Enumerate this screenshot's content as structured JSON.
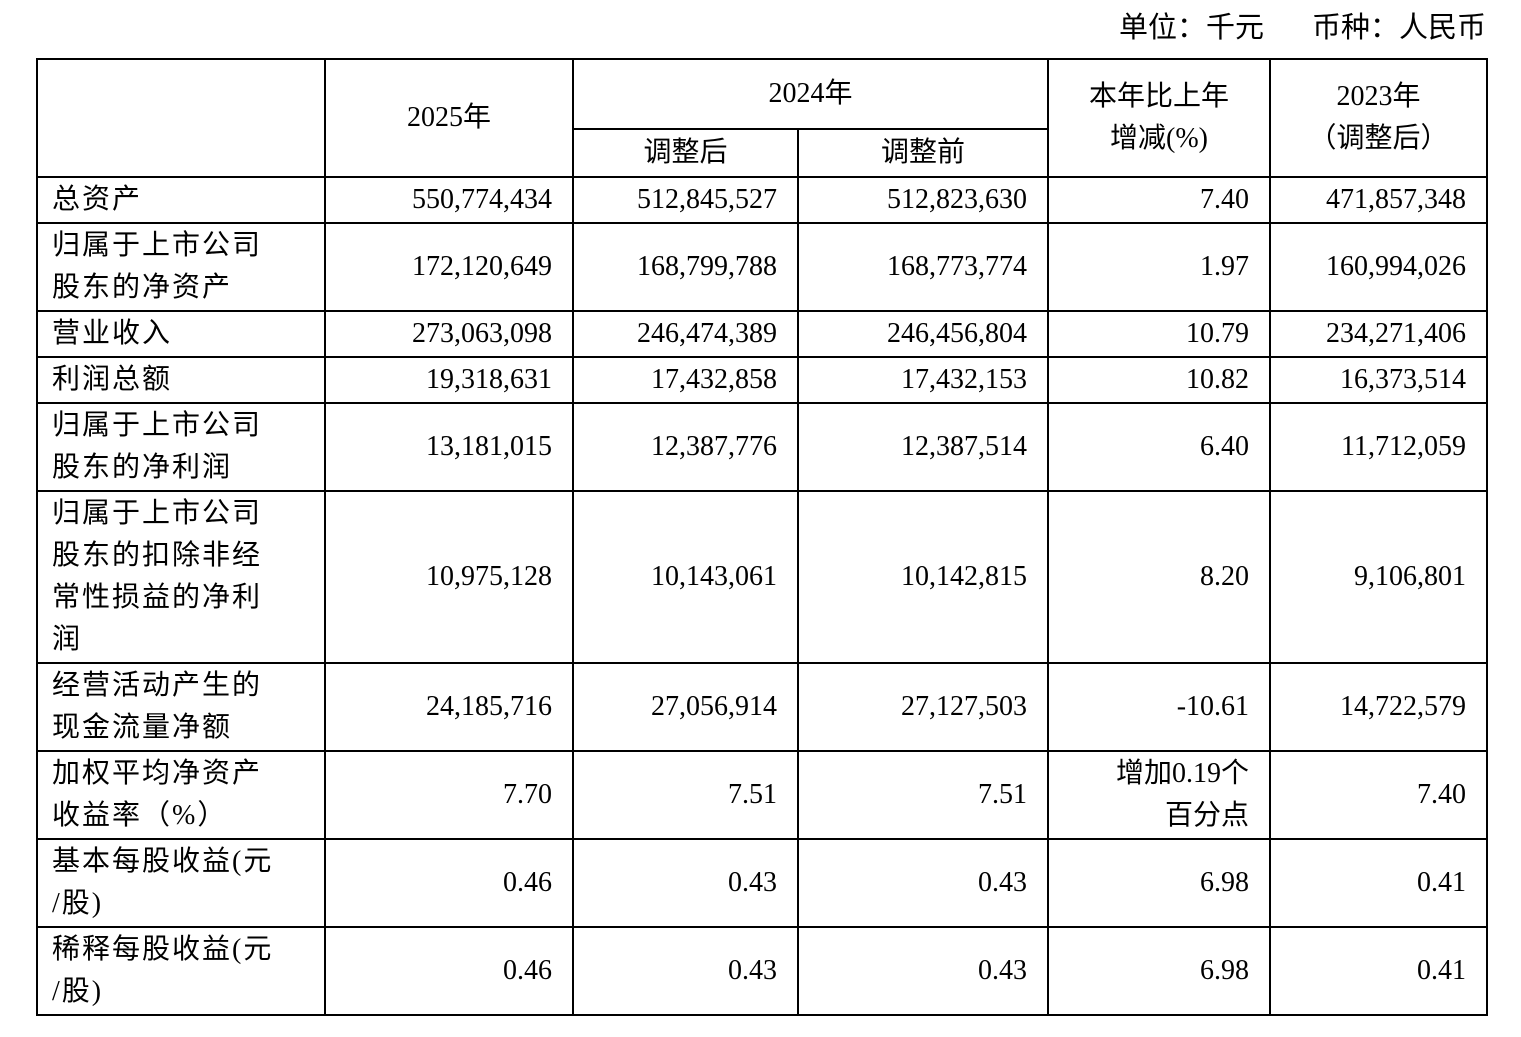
{
  "meta": {
    "unit_note": "单位：千元",
    "currency_note": "币种：人民币"
  },
  "colors": {
    "text": "#000000",
    "border": "#000000",
    "background": "#ffffff"
  },
  "table": {
    "headers": {
      "item": "",
      "col_2025": "2025年",
      "col_2024": "2024年",
      "col_2024_adjusted": "调整后",
      "col_2024_before": "调整前",
      "col_change": "本年比上年\n增减(%)",
      "col_2023": "2023年\n（调整后）"
    },
    "rows": [
      {
        "label": "总资产",
        "values": [
          "550,774,434",
          "512,845,527",
          "512,823,630",
          "7.40",
          "471,857,348"
        ]
      },
      {
        "label": "归属于上市公司\n股东的净资产",
        "values": [
          "172,120,649",
          "168,799,788",
          "168,773,774",
          "1.97",
          "160,994,026"
        ]
      },
      {
        "label": "营业收入",
        "values": [
          "273,063,098",
          "246,474,389",
          "246,456,804",
          "10.79",
          "234,271,406"
        ]
      },
      {
        "label": "利润总额",
        "values": [
          "19,318,631",
          "17,432,858",
          "17,432,153",
          "10.82",
          "16,373,514"
        ]
      },
      {
        "label": "归属于上市公司\n股东的净利润",
        "values": [
          "13,181,015",
          "12,387,776",
          "12,387,514",
          "6.40",
          "11,712,059"
        ]
      },
      {
        "label": "归属于上市公司\n股东的扣除非经\n常性损益的净利\n润",
        "values": [
          "10,975,128",
          "10,143,061",
          "10,142,815",
          "8.20",
          "9,106,801"
        ]
      },
      {
        "label": "经营活动产生的\n现金流量净额",
        "values": [
          "24,185,716",
          "27,056,914",
          "27,127,503",
          "-10.61",
          "14,722,579"
        ]
      },
      {
        "label": "加权平均净资产\n收益率（%）",
        "values": [
          "7.70",
          "7.51",
          "7.51",
          "增加0.19个\n百分点",
          "7.40"
        ]
      },
      {
        "label": "基本每股收益(元\n/股)",
        "values": [
          "0.46",
          "0.43",
          "0.43",
          "6.98",
          "0.41"
        ]
      },
      {
        "label": "稀释每股收益(元\n/股)",
        "values": [
          "0.46",
          "0.43",
          "0.43",
          "6.98",
          "0.41"
        ]
      }
    ]
  }
}
